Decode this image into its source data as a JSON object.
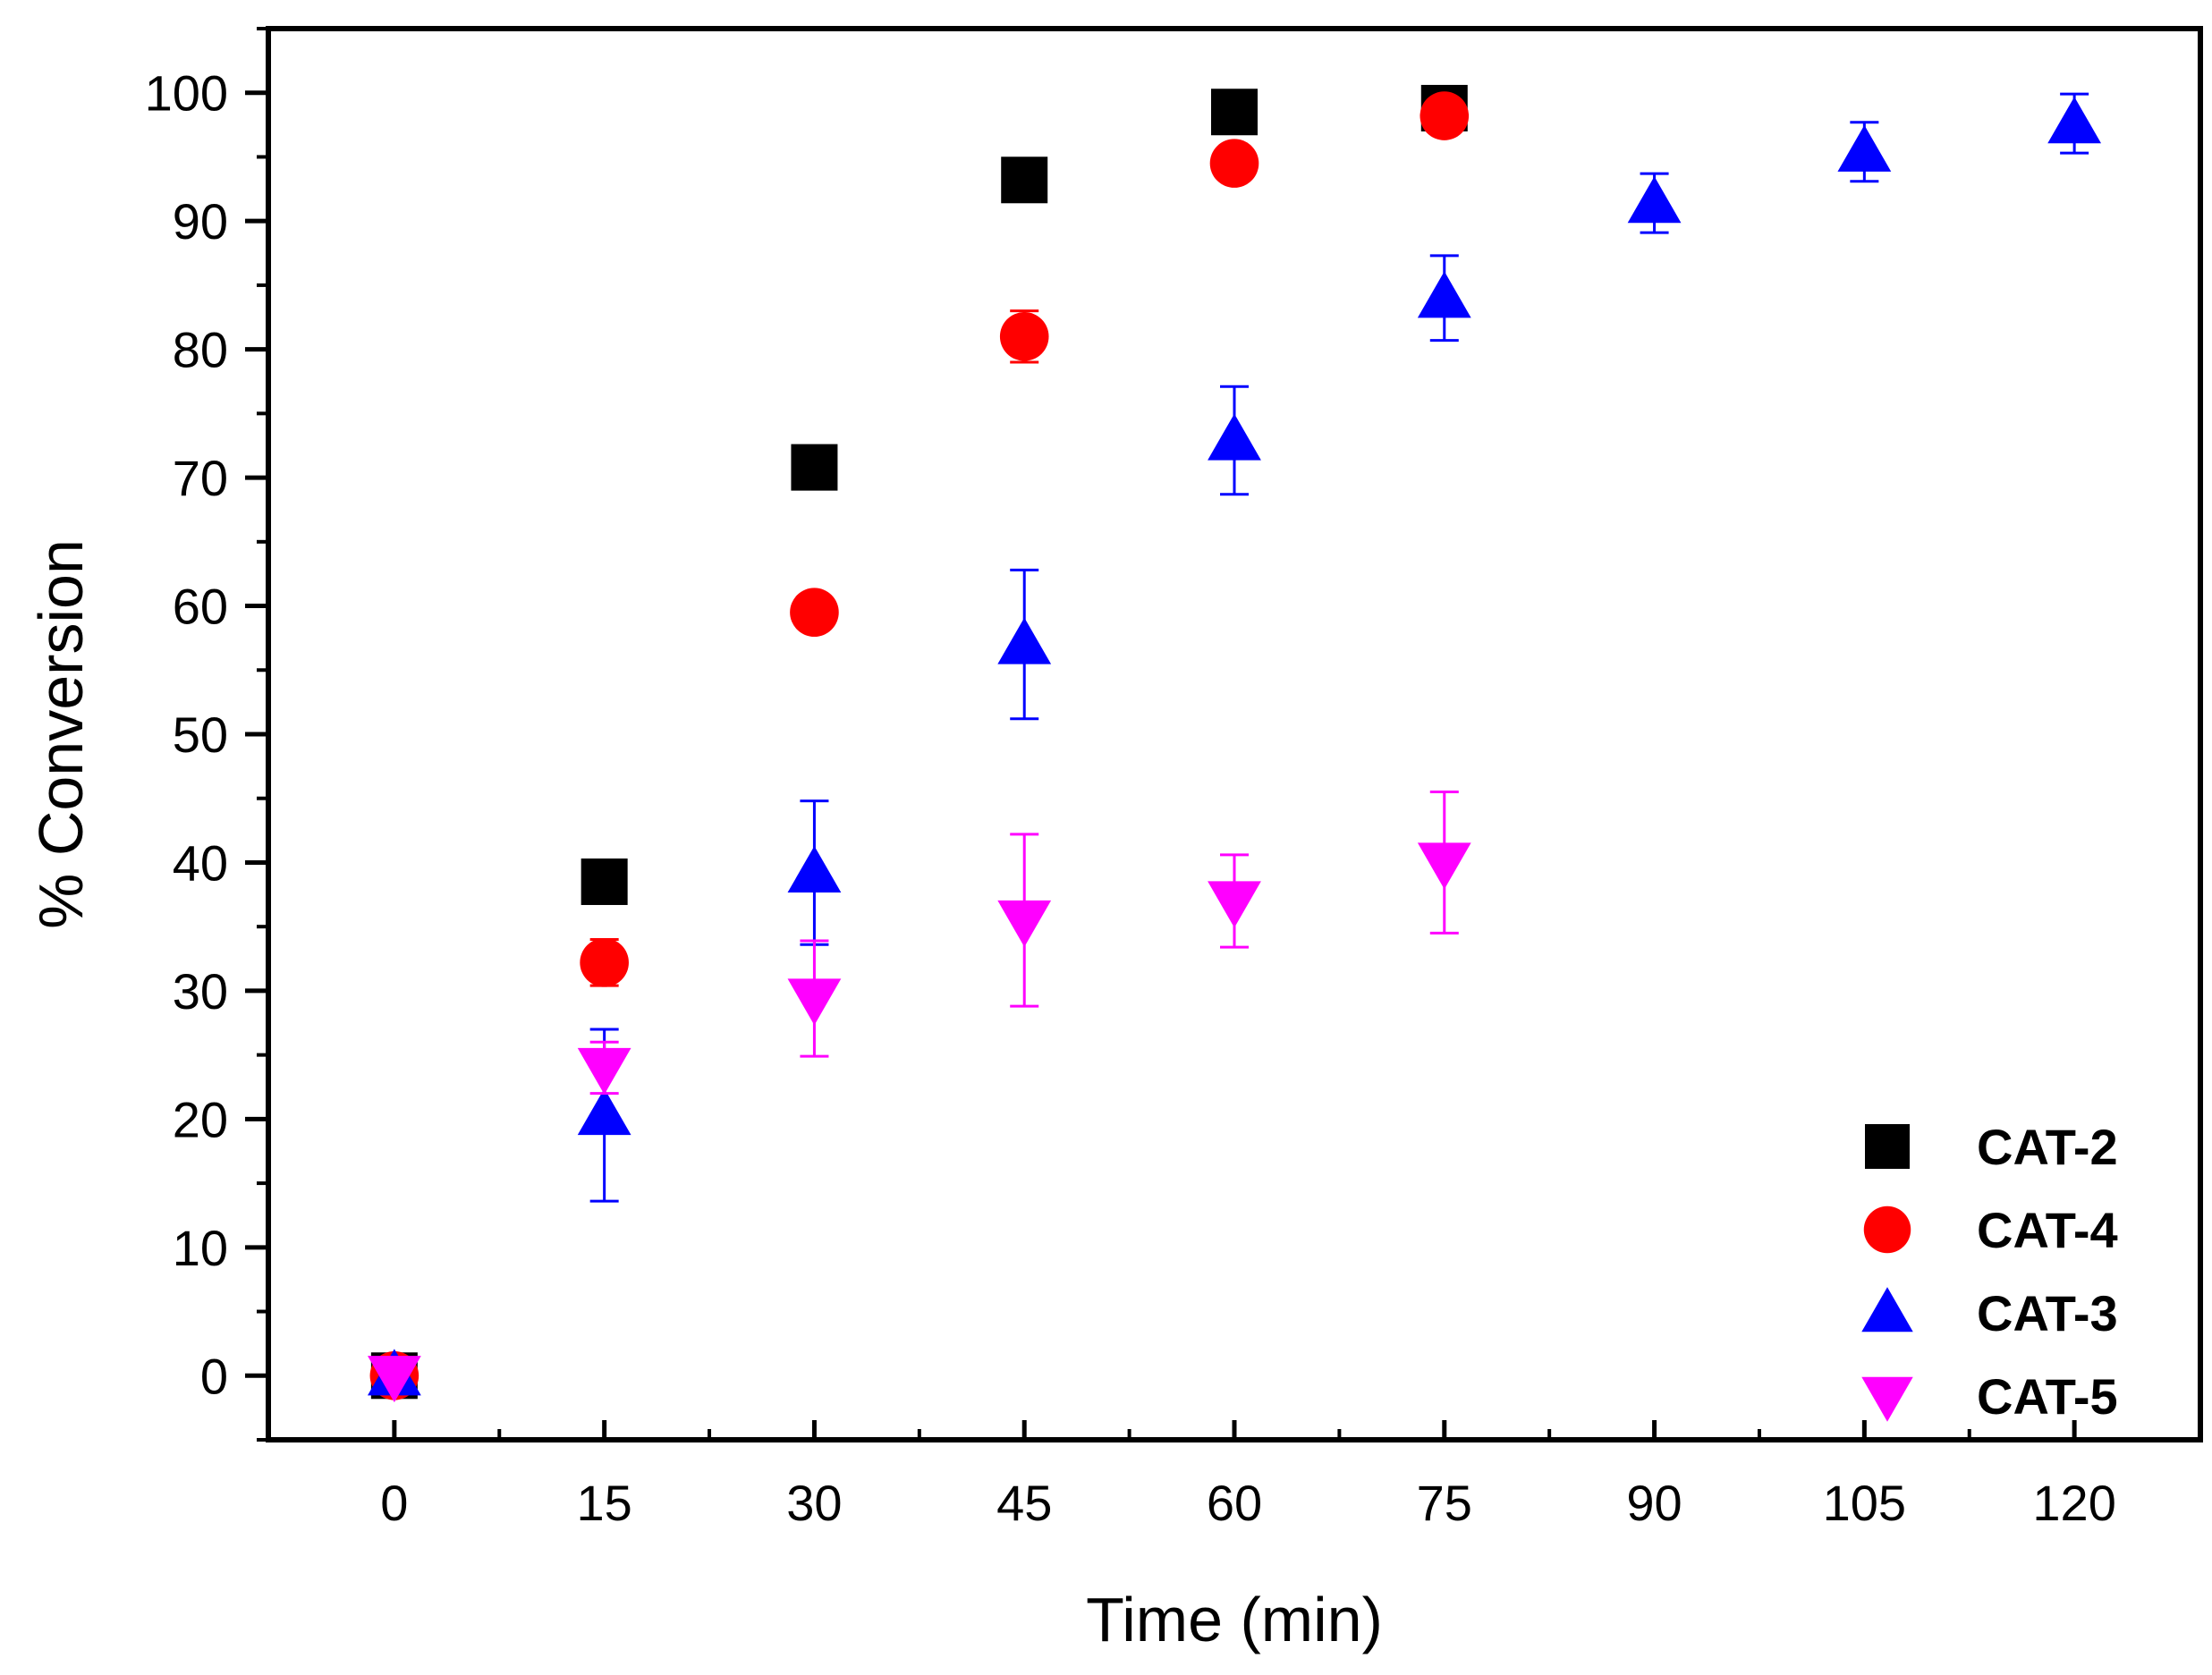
{
  "chart_data": {
    "type": "scatter",
    "title": "",
    "xlabel": "Time (min)",
    "ylabel": "% Conversion",
    "xlim": [
      -9,
      129
    ],
    "ylim": [
      -5,
      105
    ],
    "xticks": [
      0,
      15,
      30,
      45,
      60,
      75,
      90,
      105,
      120
    ],
    "xtick_labels": [
      "0",
      "15",
      "30",
      "45",
      "60",
      "75",
      "90",
      "105",
      "120"
    ],
    "yticks": [
      0,
      10,
      20,
      30,
      40,
      50,
      60,
      70,
      80,
      90,
      100
    ],
    "ytick_labels": [
      "0",
      "10",
      "20",
      "30",
      "40",
      "50",
      "60",
      "70",
      "80",
      "90",
      "100"
    ],
    "legend_position": "bottom-right",
    "series": [
      {
        "name": "CAT-2",
        "marker": "square",
        "color": "#000000",
        "x": [
          0,
          15,
          30,
          45,
          60,
          75
        ],
        "y": [
          0,
          38.5,
          70.8,
          93.2,
          98.5,
          98.8
        ],
        "err": [
          0,
          0,
          0,
          0,
          0,
          0.8
        ]
      },
      {
        "name": "CAT-4",
        "marker": "circle",
        "color": "#ff0000",
        "x": [
          0,
          15,
          30,
          45,
          60,
          75
        ],
        "y": [
          0,
          32.2,
          59.5,
          81.0,
          94.5,
          98.2
        ],
        "err": [
          0,
          1.8,
          0,
          2.0,
          0,
          0
        ]
      },
      {
        "name": "CAT-3",
        "marker": "triangle-up",
        "color": "#0000ff",
        "x": [
          0,
          15,
          30,
          45,
          60,
          75,
          90,
          105,
          120
        ],
        "y": [
          0,
          20.3,
          39.2,
          57.0,
          72.9,
          84.0,
          91.4,
          95.4,
          97.6
        ],
        "err": [
          0,
          6.7,
          5.6,
          5.8,
          4.2,
          3.3,
          2.3,
          2.3,
          2.3
        ]
      },
      {
        "name": "CAT-5",
        "marker": "triangle-down",
        "color": "#ff00ff",
        "x": [
          0,
          15,
          30,
          45,
          60,
          75
        ],
        "y": [
          0,
          24.0,
          29.4,
          35.5,
          37.0,
          40.0
        ],
        "err": [
          0,
          2.0,
          4.5,
          6.7,
          3.6,
          5.5
        ]
      }
    ]
  }
}
